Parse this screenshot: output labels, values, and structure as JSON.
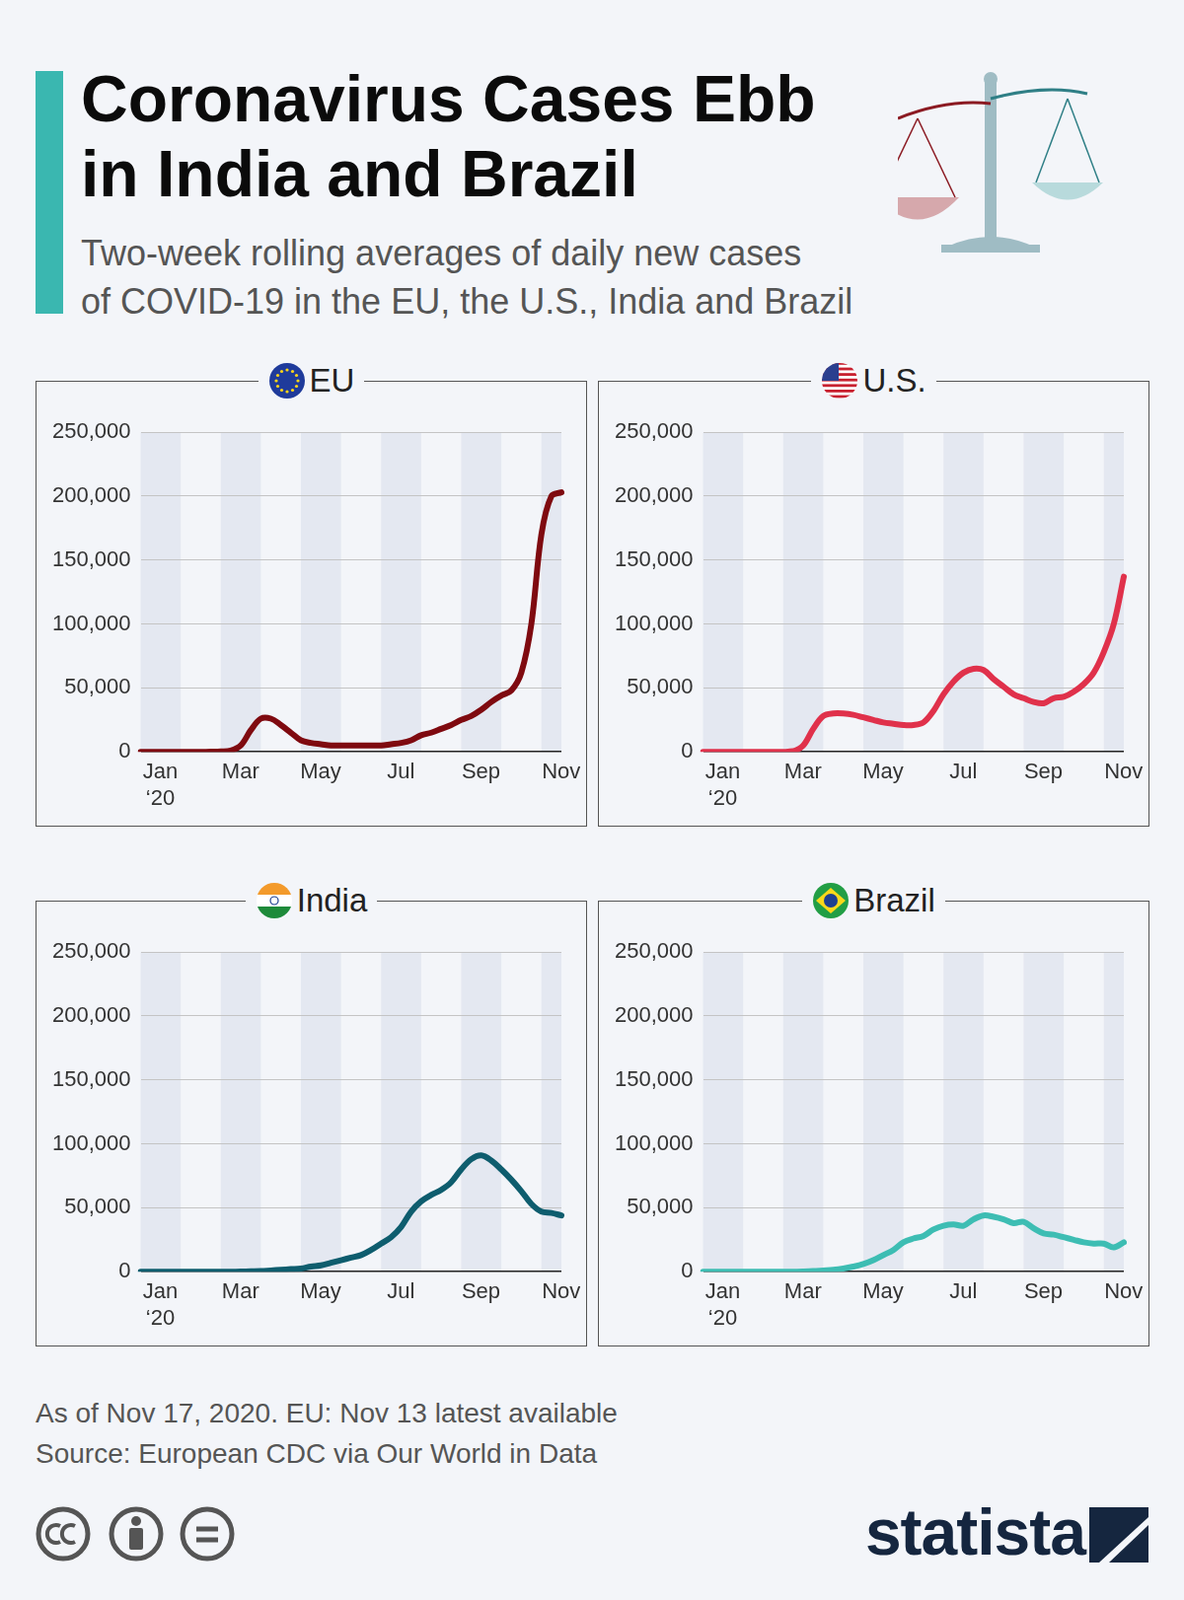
{
  "title": "Coronavirus Cases Ebb\nin India and Brazil",
  "subtitle": "Two-week rolling averages of daily new cases\nof COVID-19 in the EU, the U.S., India and Brazil",
  "notes": [
    "As of Nov 17, 2020. EU: Nov 13 latest available",
    "Source: European CDC via Our World in Data"
  ],
  "brand": "statista",
  "chart_data": [
    {
      "type": "line",
      "title": "EU",
      "color": "#7f0a10",
      "categories": [
        "Jan ‘20",
        null,
        null,
        null,
        null,
        null,
        null,
        null,
        "Mar",
        null,
        null,
        null,
        null,
        null,
        null,
        null,
        "May",
        null,
        null,
        null,
        null,
        null,
        null,
        null,
        "Jul",
        null,
        null,
        null,
        null,
        null,
        null,
        null,
        "Sep",
        null,
        null,
        null,
        null,
        null,
        null,
        null,
        "Nov",
        null,
        null
      ],
      "values": [
        0,
        0,
        0,
        0,
        0,
        0,
        0,
        100,
        300,
        1000,
        5000,
        17000,
        26000,
        26000,
        21000,
        15000,
        9000,
        7000,
        6000,
        5000,
        5000,
        5000,
        5000,
        5000,
        5000,
        6000,
        7000,
        9000,
        13000,
        15000,
        18000,
        21000,
        25000,
        28000,
        33000,
        39000,
        44000,
        48000,
        62000,
        100000,
        170000,
        200000,
        203000
      ],
      "ylim": [
        0,
        250000
      ],
      "yticks": [
        0,
        {
          "value": 50000,
          "label": "50,000"
        },
        {
          "value": 100000,
          "label": "100,000"
        },
        {
          "value": 150000,
          "label": "150,000"
        },
        {
          "value": 200000,
          "label": "200,000"
        },
        {
          "value": 250000,
          "label": "250,000"
        }
      ],
      "grid": true
    },
    {
      "type": "line",
      "title": "U.S.",
      "color": "#e0314b",
      "categories": [
        "Jan ‘20",
        null,
        null,
        null,
        null,
        null,
        null,
        null,
        "Mar",
        null,
        null,
        null,
        null,
        null,
        null,
        null,
        "May",
        null,
        null,
        null,
        null,
        null,
        null,
        null,
        "Jul",
        null,
        null,
        null,
        null,
        null,
        null,
        null,
        "Sep",
        null,
        null,
        null,
        null,
        null,
        null,
        null,
        "Nov",
        null,
        null
      ],
      "values": [
        0,
        0,
        0,
        0,
        0,
        0,
        0,
        0,
        0,
        500,
        5000,
        18000,
        28000,
        30000,
        30000,
        29000,
        27000,
        25000,
        23000,
        22000,
        21000,
        21000,
        23000,
        32000,
        45000,
        55000,
        62000,
        65000,
        64000,
        57000,
        51000,
        45000,
        42000,
        39000,
        38000,
        42000,
        43000,
        47000,
        53000,
        62000,
        78000,
        100000,
        137000
      ],
      "ylim": [
        0,
        250000
      ],
      "yticks": [
        0,
        {
          "value": 50000,
          "label": "50,000"
        },
        {
          "value": 100000,
          "label": "100,000"
        },
        {
          "value": 150000,
          "label": "150,000"
        },
        {
          "value": 200000,
          "label": "200,000"
        },
        {
          "value": 250000,
          "label": "250,000"
        }
      ],
      "grid": true
    },
    {
      "type": "line",
      "title": "India",
      "color": "#0e5d6e",
      "categories": [
        "Jan ‘20",
        null,
        null,
        null,
        null,
        null,
        null,
        null,
        "Mar",
        null,
        null,
        null,
        null,
        null,
        null,
        null,
        "May",
        null,
        null,
        null,
        null,
        null,
        null,
        null,
        "Jul",
        null,
        null,
        null,
        null,
        null,
        null,
        null,
        "Sep",
        null,
        null,
        null,
        null,
        null,
        null,
        null,
        "Nov",
        null,
        null
      ],
      "values": [
        0,
        0,
        0,
        0,
        0,
        0,
        0,
        0,
        0,
        0,
        100,
        300,
        500,
        1000,
        1500,
        2000,
        2500,
        4000,
        5000,
        7000,
        9000,
        11000,
        13000,
        17000,
        22000,
        27000,
        35000,
        47000,
        55000,
        60000,
        64000,
        70000,
        80000,
        88000,
        91000,
        87000,
        80000,
        72000,
        63000,
        53000,
        47000,
        46000,
        44000
      ],
      "ylim": [
        0,
        250000
      ],
      "yticks": [
        0,
        {
          "value": 50000,
          "label": "50,000"
        },
        {
          "value": 100000,
          "label": "100,000"
        },
        {
          "value": 150000,
          "label": "150,000"
        },
        {
          "value": 200000,
          "label": "200,000"
        },
        {
          "value": 250000,
          "label": "250,000"
        }
      ],
      "grid": true
    },
    {
      "type": "line",
      "title": "Brazil",
      "color": "#3dbdb3",
      "categories": [
        "Jan ‘20",
        null,
        null,
        null,
        null,
        null,
        null,
        null,
        "Mar",
        null,
        null,
        null,
        null,
        null,
        null,
        null,
        "May",
        null,
        null,
        null,
        null,
        null,
        null,
        null,
        "Jul",
        null,
        null,
        null,
        null,
        null,
        null,
        null,
        "Sep",
        null,
        null,
        null,
        null,
        null,
        null,
        null,
        "Nov",
        null,
        null
      ],
      "values": [
        0,
        0,
        0,
        0,
        0,
        0,
        0,
        0,
        0,
        0,
        200,
        500,
        1000,
        1500,
        2500,
        4000,
        6000,
        9000,
        13000,
        17000,
        23000,
        26000,
        28000,
        33000,
        36000,
        37000,
        36000,
        41000,
        44000,
        43000,
        41000,
        38000,
        39000,
        34000,
        30000,
        29000,
        27000,
        25000,
        23000,
        22000,
        22000,
        19000,
        23000
      ],
      "ylim": [
        0,
        250000
      ],
      "yticks": [
        0,
        {
          "value": 50000,
          "label": "50,000"
        },
        {
          "value": 100000,
          "label": "100,000"
        },
        {
          "value": 150000,
          "label": "150,000"
        },
        {
          "value": 200000,
          "label": "200,000"
        },
        {
          "value": 250000,
          "label": "250,000"
        }
      ],
      "grid": true
    }
  ]
}
